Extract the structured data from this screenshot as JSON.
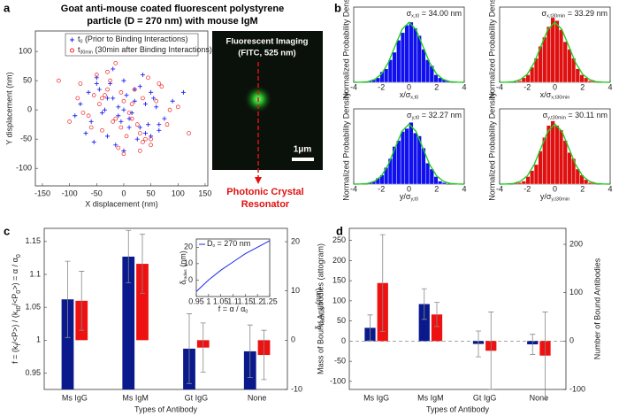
{
  "panel_labels": [
    "a",
    "b",
    "c",
    "d"
  ],
  "panel_a": {
    "title": [
      "Goat anti-mouse coated fluorescent polystyrene",
      "particle (D = 270 nm) with mouse IgM"
    ],
    "image": {
      "title": "Fluorescent Imaging",
      "subtitle": "(FITC, 525 nm)",
      "scale_bar": "1μm",
      "caption": [
        "Photonic Crystal",
        "Resonator"
      ]
    }
  },
  "chart_data": [
    {
      "type": "scatter",
      "xlabel": "X displacement (nm)",
      "ylabel": "Y displacement (nm)",
      "xlim": [
        -163,
        155
      ],
      "ylim": [
        -130,
        135
      ],
      "xticks": [
        -150,
        -100,
        -50,
        0,
        50,
        100,
        150
      ],
      "yticks": [
        -100,
        -50,
        0,
        50,
        100
      ],
      "series": [
        {
          "name": [
            {
              "text": "t"
            },
            {
              "sub": "0"
            },
            {
              "text": " (Prior to Binding Interactions)"
            }
          ],
          "color": "#2222ee",
          "marker": "plus",
          "x": [
            -80,
            -60,
            -45,
            -30,
            -20,
            -10,
            0,
            10,
            20,
            30,
            45,
            60,
            75,
            -70,
            -50,
            -35,
            -15,
            5,
            15,
            35,
            50,
            65,
            -55,
            -25,
            -5,
            25,
            40,
            55,
            -40,
            -20,
            0,
            20,
            40,
            -90,
            90,
            -65,
            65,
            -10,
            10,
            -30,
            30,
            -50,
            50,
            0,
            110
          ],
          "y": [
            10,
            -20,
            35,
            -45,
            20,
            -10,
            50,
            -30,
            15,
            40,
            -25,
            5,
            -15,
            -40,
            55,
            0,
            -60,
            25,
            -5,
            60,
            30,
            -35,
            -55,
            45,
            -20,
            -50,
            10,
            20,
            -5,
            70,
            -70,
            35,
            -40,
            -10,
            15,
            30,
            -25,
            5,
            -15,
            20,
            -30,
            45,
            -45,
            0,
            30
          ]
        },
        {
          "name": [
            {
              "text": "t"
            },
            {
              "sub": "30min"
            },
            {
              "text": " (30min after Binding Interactions)"
            }
          ],
          "color": "#ee2222",
          "marker": "circle",
          "x": [
            -75,
            -55,
            -40,
            -25,
            -15,
            -5,
            5,
            15,
            25,
            35,
            50,
            70,
            85,
            -85,
            -60,
            -30,
            -10,
            10,
            30,
            60,
            -45,
            -20,
            0,
            20,
            45,
            -65,
            -35,
            35,
            65,
            -100,
            100,
            -50,
            50,
            -15,
            15,
            -120,
            120,
            -30,
            30,
            0,
            -5,
            40,
            -40,
            80,
            -80
          ],
          "y": [
            -5,
            25,
            -35,
            50,
            -15,
            30,
            -45,
            10,
            -25,
            20,
            -50,
            40,
            0,
            20,
            -30,
            65,
            -65,
            -5,
            -40,
            15,
            10,
            -20,
            -75,
            35,
            55,
            -10,
            25,
            -55,
            45,
            -20,
            5,
            60,
            -60,
            80,
            -15,
            50,
            -40,
            35,
            -70,
            15,
            -30,
            -50,
            20,
            -25,
            45
          ]
        }
      ]
    },
    {
      "type": "histogram",
      "ylabel": "Normalized Probability Density",
      "xlabel": [
        {
          "text": "x/σ"
        },
        {
          "sub": "x,t0"
        }
      ],
      "annotation": [
        {
          "text": "σ"
        },
        {
          "sub": "x,t0"
        },
        {
          "text": " = 34.00 nm"
        }
      ],
      "color": "#1010ee",
      "xlim": [
        -4,
        4
      ],
      "ylim": [
        0,
        0.5
      ],
      "xticks": [
        -4,
        -2,
        0,
        2,
        4
      ],
      "bins": [
        -3,
        -2.7,
        -2.4,
        -2.1,
        -1.8,
        -1.5,
        -1.2,
        -0.9,
        -0.6,
        -0.3,
        0,
        0.3,
        0.6,
        0.9,
        1.2,
        1.5,
        1.8,
        2.1,
        2.4,
        2.7,
        3
      ],
      "counts": [
        0.01,
        0.02,
        0.03,
        0.07,
        0.09,
        0.15,
        0.2,
        0.28,
        0.33,
        0.38,
        0.4,
        0.36,
        0.31,
        0.22,
        0.15,
        0.11,
        0.05,
        0.03,
        0.02,
        0.01
      ],
      "fit": {
        "color": "#22cc22",
        "x": [
          -4,
          -3.5,
          -3,
          -2.5,
          -2,
          -1.5,
          -1,
          -0.5,
          0,
          0.5,
          1,
          1.5,
          2,
          2.5,
          3,
          3.5,
          4
        ],
        "y": [
          0,
          0.001,
          0.004,
          0.018,
          0.054,
          0.13,
          0.242,
          0.352,
          0.399,
          0.352,
          0.242,
          0.13,
          0.054,
          0.018,
          0.004,
          0.001,
          0
        ]
      }
    },
    {
      "type": "histogram",
      "ylabel": "Normalized Probability Density",
      "xlabel": [
        {
          "text": "x/σ"
        },
        {
          "sub": "x,t30min"
        }
      ],
      "annotation": [
        {
          "text": "σ"
        },
        {
          "sub": "x,t30min"
        },
        {
          "text": " = 33.29 nm"
        }
      ],
      "color": "#e01010",
      "xlim": [
        -4,
        4
      ],
      "ylim": [
        0,
        0.5
      ],
      "xticks": [
        -4,
        -2,
        0,
        2,
        4
      ],
      "bins": [
        -3,
        -2.7,
        -2.4,
        -2.1,
        -1.8,
        -1.5,
        -1.2,
        -0.9,
        -0.6,
        -0.3,
        0,
        0.3,
        0.6,
        0.9,
        1.2,
        1.5,
        1.8,
        2.1,
        2.4,
        2.7,
        3
      ],
      "counts": [
        0,
        0.01,
        0.03,
        0.05,
        0.1,
        0.16,
        0.24,
        0.3,
        0.37,
        0.43,
        0.41,
        0.35,
        0.27,
        0.22,
        0.16,
        0.09,
        0.05,
        0.03,
        0.01,
        0.01
      ],
      "fit": {
        "color": "#22cc22",
        "x": [
          -4,
          -3.5,
          -3,
          -2.5,
          -2,
          -1.5,
          -1,
          -0.5,
          0,
          0.5,
          1,
          1.5,
          2,
          2.5,
          3,
          3.5,
          4
        ],
        "y": [
          0,
          0.001,
          0.004,
          0.018,
          0.054,
          0.13,
          0.242,
          0.352,
          0.399,
          0.352,
          0.242,
          0.13,
          0.054,
          0.018,
          0.004,
          0.001,
          0
        ]
      }
    },
    {
      "type": "histogram",
      "ylabel": "Normalized Probability Density",
      "xlabel": [
        {
          "text": "y/σ"
        },
        {
          "sub": "y,t0"
        }
      ],
      "annotation": [
        {
          "text": "σ"
        },
        {
          "sub": "y,t0"
        },
        {
          "text": " = 32.27 nm"
        }
      ],
      "color": "#1010ee",
      "xlim": [
        -4,
        4
      ],
      "ylim": [
        0,
        0.5
      ],
      "xticks": [
        -4,
        -2,
        0,
        2,
        4
      ],
      "bins": [
        -3,
        -2.7,
        -2.4,
        -2.1,
        -1.8,
        -1.5,
        -1.2,
        -0.9,
        -0.6,
        -0.3,
        0,
        0.3,
        0.6,
        0.9,
        1.2,
        1.5,
        1.8,
        2.1,
        2.4,
        2.7,
        3
      ],
      "counts": [
        0.01,
        0.02,
        0.04,
        0.06,
        0.11,
        0.17,
        0.25,
        0.29,
        0.35,
        0.37,
        0.41,
        0.34,
        0.32,
        0.24,
        0.14,
        0.1,
        0.05,
        0.02,
        0.01,
        0
      ],
      "fit": {
        "color": "#22cc22",
        "x": [
          -4,
          -3.5,
          -3,
          -2.5,
          -2,
          -1.5,
          -1,
          -0.5,
          0,
          0.5,
          1,
          1.5,
          2,
          2.5,
          3,
          3.5,
          4
        ],
        "y": [
          0,
          0.001,
          0.004,
          0.018,
          0.054,
          0.13,
          0.242,
          0.352,
          0.399,
          0.352,
          0.242,
          0.13,
          0.054,
          0.018,
          0.004,
          0.001,
          0
        ]
      }
    },
    {
      "type": "histogram",
      "ylabel": "Normalized Probability Density",
      "xlabel": [
        {
          "text": "y/σ"
        },
        {
          "sub": "y,t30min"
        }
      ],
      "annotation": [
        {
          "text": "σ"
        },
        {
          "sub": "y,t30min"
        },
        {
          "text": " = 30.11 nm"
        }
      ],
      "color": "#e01010",
      "xlim": [
        -4,
        4
      ],
      "ylim": [
        0,
        0.5
      ],
      "xticks": [
        -4,
        -2,
        0,
        2,
        4
      ],
      "bins": [
        -3,
        -2.7,
        -2.4,
        -2.1,
        -1.8,
        -1.5,
        -1.2,
        -0.9,
        -0.6,
        -0.3,
        0,
        0.3,
        0.6,
        0.9,
        1.2,
        1.5,
        1.8,
        2.1,
        2.4,
        2.7,
        3
      ],
      "counts": [
        0.01,
        0.01,
        0.02,
        0.05,
        0.09,
        0.13,
        0.22,
        0.31,
        0.39,
        0.42,
        0.39,
        0.36,
        0.29,
        0.21,
        0.17,
        0.1,
        0.06,
        0.03,
        0.01,
        0.01
      ],
      "fit": {
        "color": "#22cc22",
        "x": [
          -4,
          -3.5,
          -3,
          -2.5,
          -2,
          -1.5,
          -1,
          -0.5,
          0,
          0.5,
          1,
          1.5,
          2,
          2.5,
          3,
          3.5,
          4
        ],
        "y": [
          0,
          0.001,
          0.004,
          0.018,
          0.054,
          0.13,
          0.242,
          0.352,
          0.399,
          0.352,
          0.242,
          0.13,
          0.054,
          0.018,
          0.004,
          0.001,
          0
        ]
      }
    },
    {
      "type": "bar",
      "xlabel": "Types of Antibody",
      "ylabel": [
        {
          "text": "f = (k"
        },
        {
          "sub": "f"
        },
        {
          "text": "/<P>) / (k"
        },
        {
          "sub": "t0"
        },
        {
          "text": "/<P"
        },
        {
          "sub": "0"
        },
        {
          "text": ">) = α / α"
        },
        {
          "sub": "0"
        }
      ],
      "ylabel_color": "#1a2a9a",
      "y2label": [
        {
          "text": "δ"
        },
        {
          "sub": "radius"
        },
        {
          "text": " (nm)"
        }
      ],
      "y2label_color": "#e01010",
      "categories": [
        "Ms IgG",
        "Ms IgM",
        "Gt IgG",
        "None"
      ],
      "ylim": [
        0.925,
        1.17
      ],
      "yticks": [
        0.95,
        1,
        1.05,
        1.1,
        1.15
      ],
      "y2lim": [
        -10,
        22.7
      ],
      "y2ticks": [
        -10,
        0,
        10,
        20
      ],
      "zero_line": false,
      "series": [
        {
          "color": "#0a1a8c",
          "values": [
            1.062,
            1.127,
            0.987,
            0.983
          ],
          "errors": [
            0.058,
            0.04,
            0.053,
            0.04
          ]
        },
        {
          "color": "#ee1111",
          "axis": "y2",
          "values": [
            8,
            15.5,
            -1.5,
            -3
          ],
          "errors": [
            6,
            6,
            5,
            5
          ]
        }
      ]
    },
    {
      "type": "line",
      "xlabel": [
        {
          "text": "f = α / α"
        },
        {
          "sub": "0"
        }
      ],
      "ylabel": [
        {
          "text": "δ"
        },
        {
          "sub": "radius"
        },
        {
          "text": " (nm)"
        }
      ],
      "xlim": [
        0.95,
        1.25
      ],
      "ylim": [
        -10,
        25
      ],
      "xticks": [
        0.95,
        1,
        1.05,
        1.1,
        1.15,
        1.2,
        1.25
      ],
      "yticks": [
        0,
        10,
        20
      ],
      "series": [
        {
          "name": [
            {
              "text": "D"
            },
            {
              "sub": "0"
            },
            {
              "text": " = 270 nm"
            }
          ],
          "color": "#1a2aee",
          "x": [
            0.95,
            1,
            1.05,
            1.1,
            1.15,
            1.2,
            1.25
          ],
          "y": [
            -7,
            0,
            6,
            11,
            16,
            20,
            24
          ]
        }
      ]
    },
    {
      "type": "bar",
      "xlabel": "Types of Antibody",
      "ylabel": "Mass of Bound Antibodies (attogram)",
      "ylabel_color": "#1a2a9a",
      "y2label": "Number of Bound Antibodies",
      "y2label_color": "#e01010",
      "categories": [
        "Ms IgG",
        "Ms IgM",
        "Gt IgG",
        "None"
      ],
      "ylim": [
        -120,
        280
      ],
      "yticks": [
        -100,
        -50,
        0,
        50,
        100,
        150,
        200,
        250
      ],
      "y2lim": [
        -100,
        233
      ],
      "y2ticks": [
        -100,
        0,
        100,
        200
      ],
      "zero_line": true,
      "series": [
        {
          "color": "#0a1a8c",
          "values": [
            33,
            92,
            -7,
            -8
          ],
          "errors": [
            32,
            38,
            32,
            25
          ]
        },
        {
          "color": "#ee1111",
          "axis": "y2",
          "values": [
            120,
            55,
            -20,
            -30
          ],
          "errors": [
            100,
            25,
            80,
            90
          ]
        }
      ]
    }
  ]
}
